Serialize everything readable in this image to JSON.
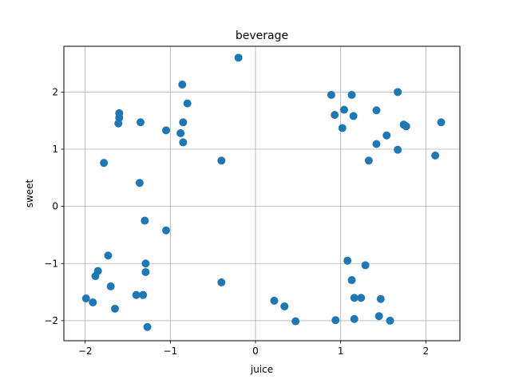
{
  "chart_data": {
    "type": "scatter",
    "title": "beverage",
    "xlabel": "juice",
    "ylabel": "sweet",
    "xlim": [
      -2.25,
      2.4
    ],
    "ylim": [
      -2.35,
      2.8
    ],
    "xticks": [
      -2,
      -1,
      0,
      1,
      2
    ],
    "yticks": [
      -2,
      -1,
      0,
      1,
      2
    ],
    "grid": true,
    "color": "#1f77b4",
    "points": [
      {
        "x": -0.2,
        "y": 2.6
      },
      {
        "x": -0.86,
        "y": 2.13
      },
      {
        "x": -0.8,
        "y": 1.8
      },
      {
        "x": -0.85,
        "y": 1.47
      },
      {
        "x": -0.88,
        "y": 1.28
      },
      {
        "x": -0.85,
        "y": 1.12
      },
      {
        "x": -1.05,
        "y": 1.33
      },
      {
        "x": -1.35,
        "y": 1.47
      },
      {
        "x": -1.6,
        "y": 1.63
      },
      {
        "x": -1.6,
        "y": 1.55
      },
      {
        "x": -1.61,
        "y": 1.45
      },
      {
        "x": -1.78,
        "y": 0.76
      },
      {
        "x": -0.4,
        "y": 0.8
      },
      {
        "x": -1.36,
        "y": 0.41
      },
      {
        "x": -1.3,
        "y": -0.25
      },
      {
        "x": -1.05,
        "y": -0.42
      },
      {
        "x": -1.73,
        "y": -0.86
      },
      {
        "x": -1.29,
        "y": -1.0
      },
      {
        "x": -1.29,
        "y": -1.15
      },
      {
        "x": -1.85,
        "y": -1.13
      },
      {
        "x": -1.88,
        "y": -1.22
      },
      {
        "x": -1.7,
        "y": -1.4
      },
      {
        "x": -0.4,
        "y": -1.33
      },
      {
        "x": -1.4,
        "y": -1.55
      },
      {
        "x": -1.32,
        "y": -1.55
      },
      {
        "x": -1.99,
        "y": -1.61
      },
      {
        "x": -1.91,
        "y": -1.68
      },
      {
        "x": -1.65,
        "y": -1.79
      },
      {
        "x": -1.27,
        "y": -2.11
      },
      {
        "x": 0.22,
        "y": -1.65
      },
      {
        "x": 0.34,
        "y": -1.75
      },
      {
        "x": 0.47,
        "y": -2.01
      },
      {
        "x": 0.94,
        "y": -1.99
      },
      {
        "x": 1.08,
        "y": -0.95
      },
      {
        "x": 1.13,
        "y": -1.29
      },
      {
        "x": 1.29,
        "y": -1.03
      },
      {
        "x": 1.16,
        "y": -1.6
      },
      {
        "x": 1.24,
        "y": -1.6
      },
      {
        "x": 1.16,
        "y": -1.97
      },
      {
        "x": 1.47,
        "y": -1.62
      },
      {
        "x": 1.45,
        "y": -1.92
      },
      {
        "x": 1.58,
        "y": -2.0
      },
      {
        "x": 0.89,
        "y": 1.95
      },
      {
        "x": 1.13,
        "y": 1.95
      },
      {
        "x": 1.67,
        "y": 2.0
      },
      {
        "x": 1.04,
        "y": 1.69
      },
      {
        "x": 1.42,
        "y": 1.68
      },
      {
        "x": 0.93,
        "y": 1.6
      },
      {
        "x": 1.15,
        "y": 1.58
      },
      {
        "x": 1.02,
        "y": 1.37
      },
      {
        "x": 1.74,
        "y": 1.43
      },
      {
        "x": 1.77,
        "y": 1.4
      },
      {
        "x": 1.54,
        "y": 1.24
      },
      {
        "x": 1.42,
        "y": 1.09
      },
      {
        "x": 1.67,
        "y": 0.99
      },
      {
        "x": 1.33,
        "y": 0.8
      },
      {
        "x": 2.11,
        "y": 0.89
      },
      {
        "x": 2.18,
        "y": 1.47
      }
    ]
  }
}
